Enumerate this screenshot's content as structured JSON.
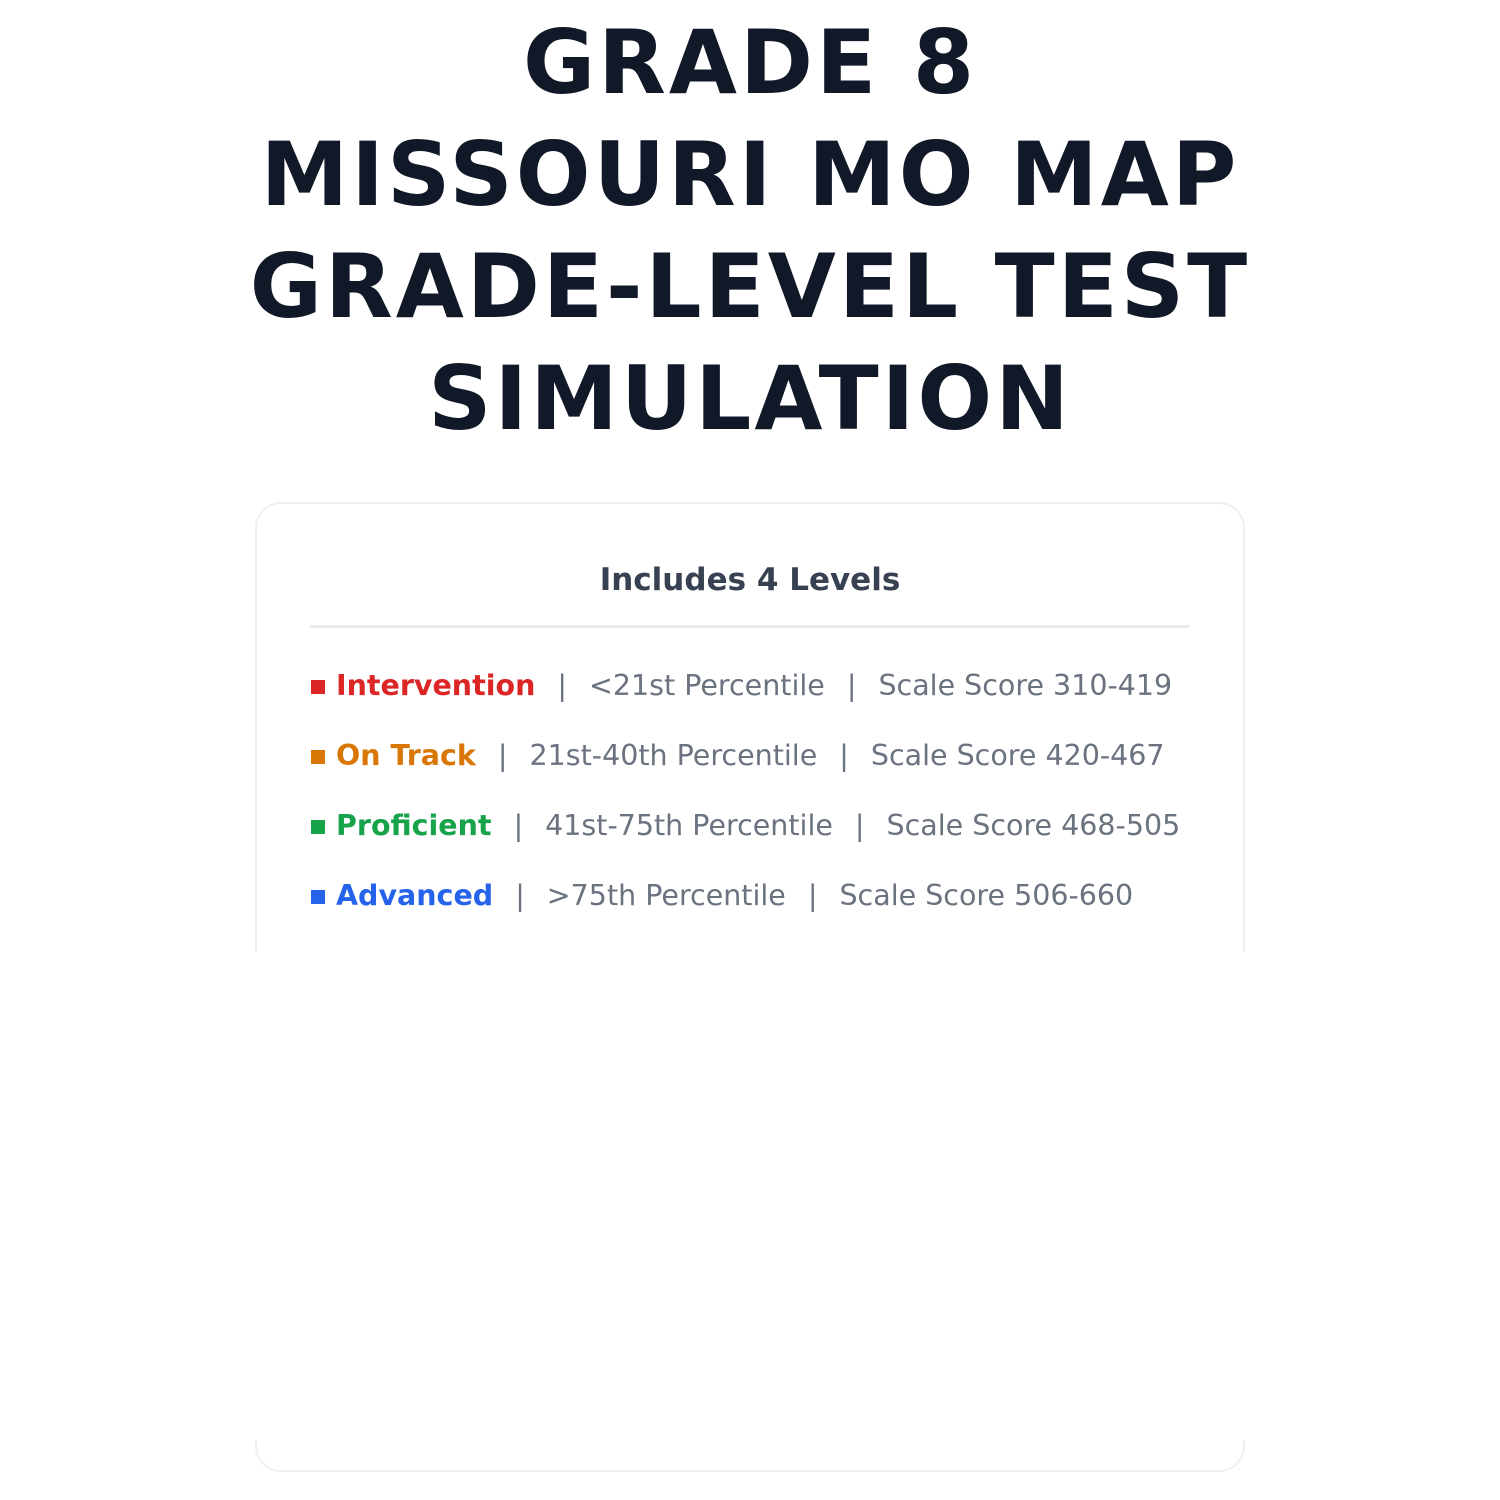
{
  "title_lines": [
    "GRADE 8",
    "MISSOURI MO MAP",
    "GRADE-LEVEL TEST",
    "SIMULATION"
  ],
  "card": {
    "heading": "Includes 4 Levels",
    "separator": "|",
    "levels": [
      {
        "label": "Intervention",
        "percentile": "<21st Percentile",
        "scale": "Scale Score 310-419",
        "color": "#dc2626"
      },
      {
        "label": "On Track",
        "percentile": "21st-40th Percentile",
        "scale": "Scale Score 420-467",
        "color": "#d97706"
      },
      {
        "label": "Proficient",
        "percentile": "41st-75th Percentile",
        "scale": "Scale Score 468-505",
        "color": "#16a34a"
      },
      {
        "label": "Advanced",
        "percentile": ">75th Percentile",
        "scale": "Scale Score 506-660",
        "color": "#2563eb"
      }
    ]
  }
}
